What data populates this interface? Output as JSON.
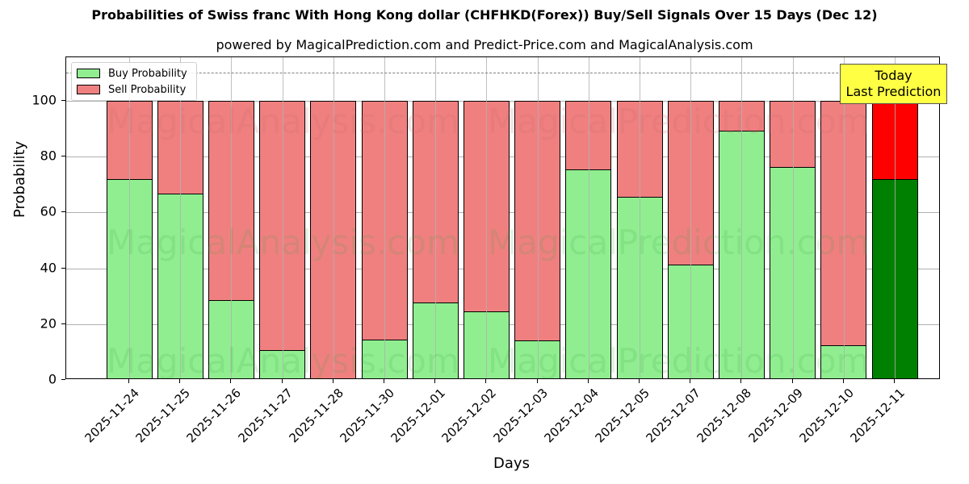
{
  "title": "Probabilities of Swiss franc With Hong Kong dollar (CHFHKD(Forex)) Buy/Sell Signals Over 15 Days (Dec 12)",
  "subtitle": "powered by MagicalPrediction.com and Predict-Price.com and MagicalAnalysis.com",
  "legend": {
    "buy_label": "Buy Probability",
    "sell_label": "Sell Probability"
  },
  "annotation": {
    "line1": "Today",
    "line2": "Last Prediction"
  },
  "watermarks": [
    "MagicalAnalysis.com",
    "MagicalPrediction.com"
  ],
  "colors": {
    "buy": "#90ee90",
    "sell": "#f08080",
    "buy_today": "#008000",
    "sell_today": "#ff0000",
    "annotation_bg": "#ffff44",
    "threshold_line": "#808080"
  },
  "chart_data": {
    "type": "bar",
    "stacked": true,
    "title": "Probabilities of Swiss franc With Hong Kong dollar (CHFHKD(Forex)) Buy/Sell Signals Over 15 Days (Dec 12)",
    "subtitle": "powered by MagicalPrediction.com and Predict-Price.com and MagicalAnalysis.com",
    "xlabel": "Days",
    "ylabel": "Probability",
    "ylim": [
      0,
      115
    ],
    "yticks": [
      0,
      20,
      40,
      60,
      80,
      100
    ],
    "grid": true,
    "legend_position": "upper left",
    "threshold_line": 110,
    "categories": [
      "2025-11-24",
      "2025-11-25",
      "2025-11-26",
      "2025-11-27",
      "2025-11-28",
      "2025-11-30",
      "2025-12-01",
      "2025-12-02",
      "2025-12-03",
      "2025-12-04",
      "2025-12-05",
      "2025-12-07",
      "2025-12-08",
      "2025-12-09",
      "2025-12-10",
      "2025-12-11"
    ],
    "series": [
      {
        "name": "Buy Probability",
        "values": [
          72.0,
          66.8,
          28.6,
          10.7,
          0.0,
          14.5,
          27.7,
          24.6,
          14.2,
          75.4,
          65.6,
          41.3,
          89.3,
          76.3,
          12.4,
          72.0
        ]
      },
      {
        "name": "Sell Probability",
        "values": [
          28.0,
          33.2,
          71.4,
          89.3,
          100.0,
          85.5,
          72.3,
          75.4,
          85.8,
          24.6,
          34.4,
          58.7,
          10.7,
          23.7,
          87.6,
          28.0
        ]
      }
    ],
    "highlight_last": {
      "label": "Today Last Prediction",
      "index": 15
    }
  }
}
